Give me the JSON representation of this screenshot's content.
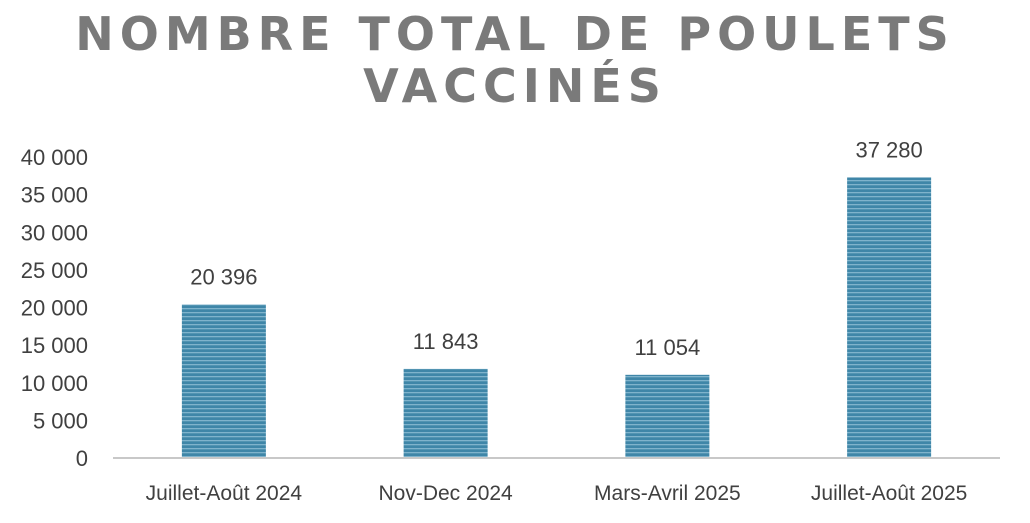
{
  "title_line1": "NOMBRE TOTAL DE POULETS",
  "title_line2": "VACCINÉS",
  "colors": {
    "bar": "#3f86a8",
    "bar_stripe": "#7fb3cc",
    "axis": "#c8c8c8",
    "text": "#404040",
    "title": "#7a7a7a"
  },
  "chart_data": {
    "type": "bar",
    "title": "NOMBRE TOTAL DE POULETS VACCINÉS",
    "xlabel": "",
    "ylabel": "",
    "categories": [
      "Juillet-Août 2024",
      "Nov-Dec 2024",
      "Mars-Avril 2025",
      "Juillet-Août 2025"
    ],
    "values": [
      20396,
      11843,
      11054,
      37280
    ],
    "data_labels": [
      "20 396",
      "11 843",
      "11 054",
      "37 280"
    ],
    "ylim": [
      0,
      40000
    ],
    "yticks": [
      0,
      5000,
      10000,
      15000,
      20000,
      25000,
      30000,
      35000,
      40000
    ],
    "ytick_labels": [
      "0",
      "5 000",
      "10 000",
      "15 000",
      "20 000",
      "25 000",
      "30 000",
      "35 000",
      "40 000"
    ],
    "grid": false,
    "legend": "none"
  }
}
